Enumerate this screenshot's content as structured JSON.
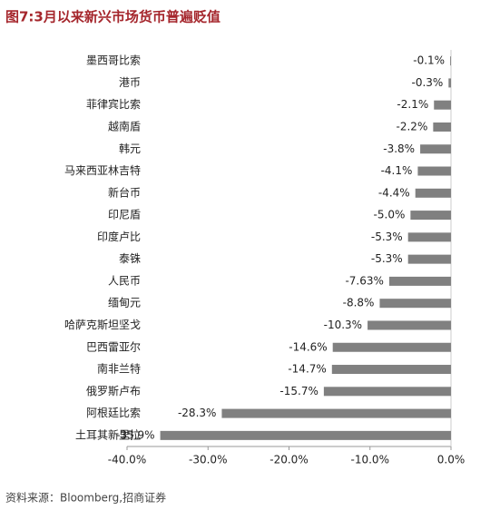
{
  "chart_data": {
    "type": "barh",
    "title": "图7:3月以来新兴市场货币普遍贬值",
    "categories": [
      "墨西哥比索",
      "港币",
      "菲律宾比索",
      "越南盾",
      "韩元",
      "马来西亚林吉特",
      "新台币",
      "印尼盾",
      "印度卢比",
      "泰铢",
      "人民币",
      "缅甸元",
      "哈萨克斯坦坚戈",
      "巴西雷亚尔",
      "南非兰特",
      "俄罗斯卢布",
      "阿根廷比索",
      "土耳其新里拉"
    ],
    "values": [
      -0.1,
      -0.3,
      -2.1,
      -2.2,
      -3.8,
      -4.1,
      -4.4,
      -5.0,
      -5.3,
      -5.3,
      -7.63,
      -8.8,
      -10.3,
      -14.6,
      -14.7,
      -15.7,
      -28.3,
      -35.9
    ],
    "value_labels": [
      "-0.1%",
      "-0.3%",
      "-2.1%",
      "-2.2%",
      "-3.8%",
      "-4.1%",
      "-4.4%",
      "-5.0%",
      "-5.3%",
      "-5.3%",
      "-7.63%",
      "-8.8%",
      "-10.3%",
      "-14.6%",
      "-14.7%",
      "-15.7%",
      "-28.3%",
      "-35.9%"
    ],
    "color": "#808080",
    "xlim": [
      -40,
      0
    ],
    "xticks": [
      {
        "value": -40,
        "label": "-40.0%"
      },
      {
        "value": -30,
        "label": "-30.0%"
      },
      {
        "value": -20,
        "label": "-20.0%"
      },
      {
        "value": -10,
        "label": "-10.0%"
      },
      {
        "value": 0,
        "label": "0.0%"
      }
    ]
  },
  "source": "资料来源：Bloomberg,招商证券"
}
